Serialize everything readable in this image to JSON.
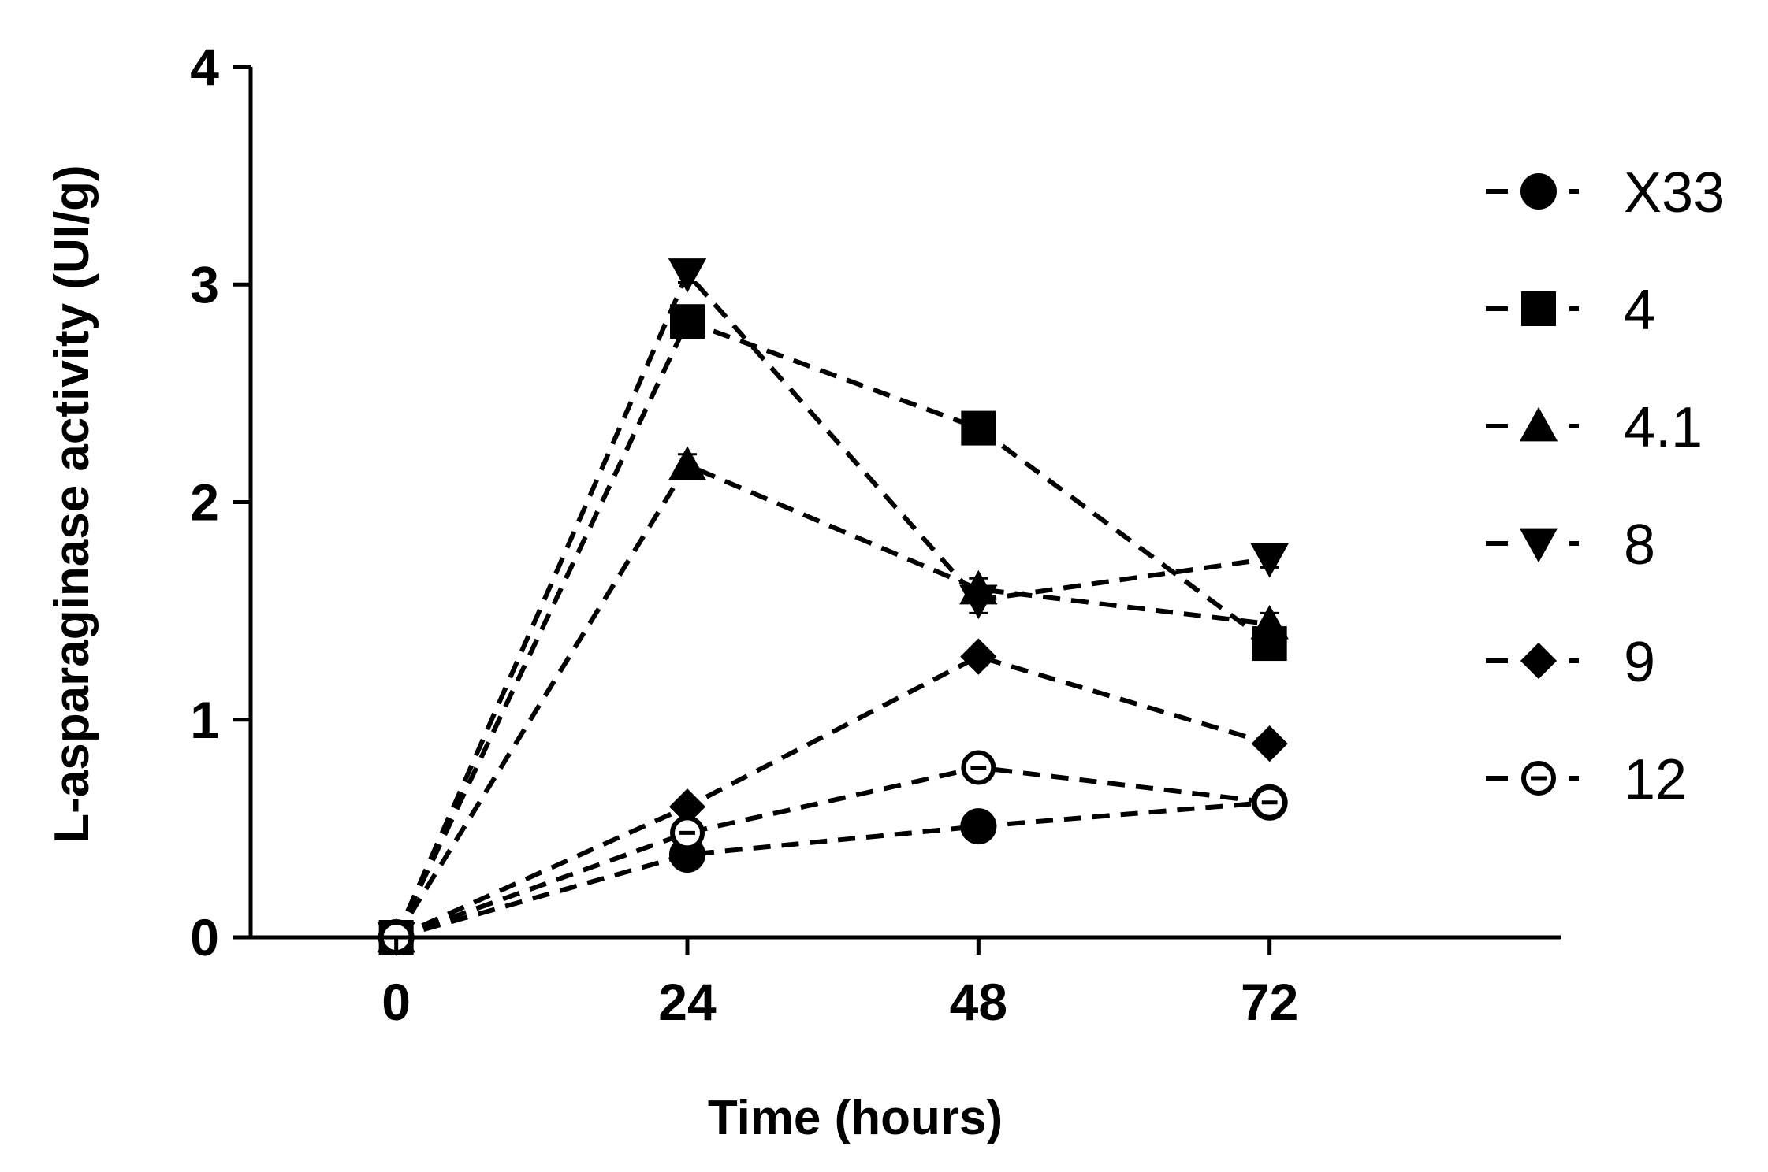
{
  "chart_data": {
    "type": "line",
    "title": "",
    "xlabel": "Time (hours)",
    "ylabel": "L-asparaginase activity (UI/g)",
    "x": [
      0,
      24,
      48,
      72
    ],
    "x_tick_labels": [
      "0",
      "24",
      "48",
      "72"
    ],
    "y_tick_labels": [
      "0",
      "1",
      "2",
      "3",
      "4"
    ],
    "xlim": [
      -12,
      96
    ],
    "ylim": [
      0,
      4
    ],
    "grid": false,
    "legend_position": "right",
    "series": [
      {
        "name": "X33",
        "marker": "circle-filled",
        "values": [
          0,
          0.38,
          0.51,
          0.62
        ],
        "errors": [
          0,
          0.02,
          0.02,
          0.02
        ]
      },
      {
        "name": "4",
        "marker": "square-filled",
        "values": [
          0,
          2.83,
          2.34,
          1.35
        ],
        "errors": [
          0,
          0.04,
          0.03,
          0.05
        ]
      },
      {
        "name": "4.1",
        "marker": "triangle-up",
        "values": [
          0,
          2.17,
          1.6,
          1.44
        ],
        "errors": [
          0,
          0.05,
          0.05,
          0.05
        ]
      },
      {
        "name": "8",
        "marker": "triangle-down",
        "values": [
          0,
          3.05,
          1.55,
          1.74
        ],
        "errors": [
          0,
          0.04,
          0.06,
          0.04
        ]
      },
      {
        "name": "9",
        "marker": "diamond-filled",
        "values": [
          0,
          0.6,
          1.29,
          0.89
        ],
        "errors": [
          0,
          0.02,
          0.04,
          0.03
        ]
      },
      {
        "name": "12",
        "marker": "circle-open",
        "values": [
          0,
          0.48,
          0.78,
          0.62
        ],
        "errors": [
          0,
          0.03,
          0.03,
          0.02
        ]
      }
    ]
  }
}
